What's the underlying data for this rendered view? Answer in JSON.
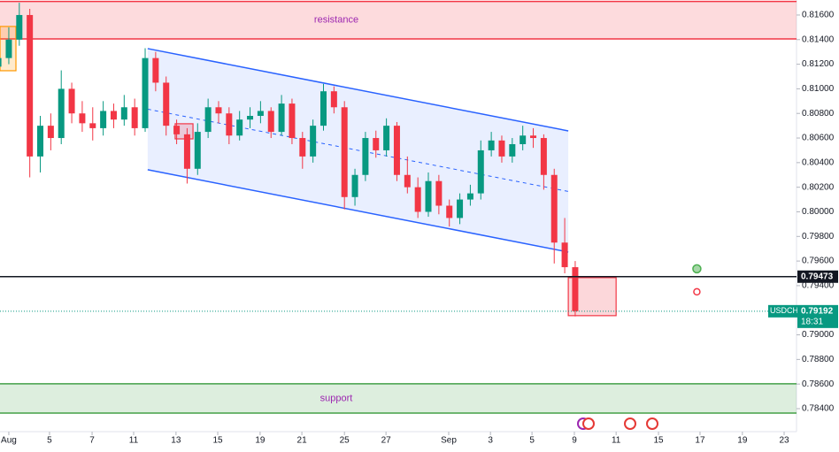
{
  "chart_data": {
    "type": "candlestick",
    "symbol": "USDCHF",
    "countdown": "18:31",
    "up_color": "#089981",
    "down_color": "#f23645",
    "x": [
      -0.5,
      0,
      0.5,
      1,
      1.5,
      2,
      2.5,
      3,
      3.5,
      4,
      4.5,
      5,
      5.5,
      6,
      6.5,
      7,
      7.5,
      8,
      8.5,
      9,
      9.5,
      10,
      10.5,
      11,
      11.5,
      12,
      12.5,
      13,
      13.5,
      14,
      14.5,
      15,
      15.5,
      16,
      16.5,
      17,
      17.5,
      18,
      18.5,
      19,
      19.5,
      20,
      20.5,
      21,
      21.5,
      22,
      22.5,
      23,
      23.5,
      24,
      24.5,
      25,
      25.5,
      26,
      26.5,
      27
    ],
    "ohlc": [
      [
        0.8118,
        0.8132,
        0.811,
        0.8125
      ],
      [
        0.8125,
        0.815,
        0.812,
        0.814
      ],
      [
        0.814,
        0.817,
        0.8135,
        0.816
      ],
      [
        0.816,
        0.8165,
        0.8028,
        0.8045
      ],
      [
        0.8045,
        0.8078,
        0.8032,
        0.807
      ],
      [
        0.807,
        0.808,
        0.805,
        0.806
      ],
      [
        0.806,
        0.8115,
        0.8055,
        0.81
      ],
      [
        0.81,
        0.8105,
        0.8072,
        0.808
      ],
      [
        0.808,
        0.809,
        0.8065,
        0.8072
      ],
      [
        0.8072,
        0.8085,
        0.8058,
        0.8068
      ],
      [
        0.8068,
        0.809,
        0.8062,
        0.8082
      ],
      [
        0.8082,
        0.8088,
        0.8068,
        0.8075
      ],
      [
        0.8075,
        0.8095,
        0.807,
        0.8085
      ],
      [
        0.8085,
        0.8092,
        0.8062,
        0.8068
      ],
      [
        0.8068,
        0.8133,
        0.8065,
        0.8125
      ],
      [
        0.8125,
        0.813,
        0.8098,
        0.8105
      ],
      [
        0.8105,
        0.811,
        0.8062,
        0.807
      ],
      [
        0.807,
        0.8075,
        0.8055,
        0.8063
      ],
      [
        0.8063,
        0.8068,
        0.8023,
        0.8035
      ],
      [
        0.8035,
        0.8072,
        0.803,
        0.8065
      ],
      [
        0.8065,
        0.8092,
        0.806,
        0.8085
      ],
      [
        0.8085,
        0.809,
        0.8072,
        0.808
      ],
      [
        0.808,
        0.8085,
        0.8055,
        0.8062
      ],
      [
        0.8062,
        0.8082,
        0.8058,
        0.8075
      ],
      [
        0.8075,
        0.8085,
        0.8068,
        0.8078
      ],
      [
        0.8078,
        0.809,
        0.8072,
        0.8082
      ],
      [
        0.8082,
        0.8085,
        0.806,
        0.8065
      ],
      [
        0.8065,
        0.8095,
        0.8062,
        0.8088
      ],
      [
        0.8088,
        0.8092,
        0.8055,
        0.806
      ],
      [
        0.806,
        0.8065,
        0.8035,
        0.8045
      ],
      [
        0.8045,
        0.8075,
        0.804,
        0.807
      ],
      [
        0.807,
        0.8104,
        0.8066,
        0.8098
      ],
      [
        0.8098,
        0.8102,
        0.808,
        0.8085
      ],
      [
        0.8085,
        0.809,
        0.8002,
        0.8012
      ],
      [
        0.8012,
        0.8035,
        0.8005,
        0.803
      ],
      [
        0.803,
        0.8065,
        0.8025,
        0.806
      ],
      [
        0.806,
        0.8066,
        0.8044,
        0.805
      ],
      [
        0.805,
        0.8076,
        0.8045,
        0.807
      ],
      [
        0.807,
        0.8073,
        0.8025,
        0.803
      ],
      [
        0.803,
        0.8045,
        0.8015,
        0.802
      ],
      [
        0.802,
        0.8028,
        0.7995,
        0.8
      ],
      [
        0.8,
        0.8032,
        0.7996,
        0.8025
      ],
      [
        0.8025,
        0.803,
        0.7998,
        0.8005
      ],
      [
        0.8005,
        0.801,
        0.7988,
        0.7995
      ],
      [
        0.7995,
        0.8015,
        0.799,
        0.801
      ],
      [
        0.801,
        0.8022,
        0.8005,
        0.8015
      ],
      [
        0.8015,
        0.8058,
        0.801,
        0.805
      ],
      [
        0.805,
        0.8065,
        0.8045,
        0.8058
      ],
      [
        0.8058,
        0.8062,
        0.804,
        0.8045
      ],
      [
        0.8045,
        0.806,
        0.804,
        0.8055
      ],
      [
        0.8055,
        0.807,
        0.805,
        0.8062
      ],
      [
        0.8062,
        0.8068,
        0.8052,
        0.806
      ],
      [
        0.806,
        0.8063,
        0.8018,
        0.803
      ],
      [
        0.803,
        0.8035,
        0.7958,
        0.7975
      ],
      [
        0.7975,
        0.7995,
        0.795,
        0.7955
      ],
      [
        0.7955,
        0.796,
        0.7915,
        0.79192
      ]
    ],
    "xlim": [
      -0.42,
      37.55
    ],
    "ylim": [
      0.78213,
      0.81722
    ],
    "xticks": [
      {
        "value": 0,
        "label": "Aug"
      },
      {
        "value": 1.94,
        "label": "5"
      },
      {
        "value": 3.97,
        "label": "7"
      },
      {
        "value": 5.95,
        "label": "11"
      },
      {
        "value": 7.97,
        "label": "13"
      },
      {
        "value": 9.96,
        "label": "15"
      },
      {
        "value": 11.98,
        "label": "19"
      },
      {
        "value": 13.97,
        "label": "21"
      },
      {
        "value": 16,
        "label": "25"
      },
      {
        "value": 17.98,
        "label": "27"
      },
      {
        "value": 20.97,
        "label": "Sep"
      },
      {
        "value": 22.96,
        "label": "3"
      },
      {
        "value": 24.94,
        "label": "5"
      },
      {
        "value": 26.96,
        "label": "9"
      },
      {
        "value": 28.95,
        "label": "11"
      },
      {
        "value": 30.97,
        "label": "15"
      },
      {
        "value": 32.95,
        "label": "17"
      },
      {
        "value": 34.97,
        "label": "19"
      },
      {
        "value": 36.96,
        "label": "23"
      }
    ],
    "yticks": [
      {
        "value": 0.816,
        "label": "0.81600"
      },
      {
        "value": 0.814,
        "label": "0.81400"
      },
      {
        "value": 0.812,
        "label": "0.81200"
      },
      {
        "value": 0.81,
        "label": "0.81000"
      },
      {
        "value": 0.808,
        "label": "0.80800"
      },
      {
        "value": 0.806,
        "label": "0.80600"
      },
      {
        "value": 0.804,
        "label": "0.80400"
      },
      {
        "value": 0.802,
        "label": "0.80200"
      },
      {
        "value": 0.8,
        "label": "0.80000"
      },
      {
        "value": 0.798,
        "label": "0.79800"
      },
      {
        "value": 0.796,
        "label": "0.79600"
      },
      {
        "value": 0.794,
        "label": "0.79400"
      },
      {
        "value": 0.79,
        "label": "0.79000"
      },
      {
        "value": 0.788,
        "label": "0.78800"
      },
      {
        "value": 0.786,
        "label": "0.78600"
      },
      {
        "value": 0.784,
        "label": "0.78400"
      }
    ],
    "resistance": {
      "label": "resistance",
      "range": [
        0.81406,
        0.8171
      ],
      "color": "#f23645"
    },
    "support": {
      "label": "support",
      "range": [
        0.78364,
        0.78602
      ],
      "color": "#43a047"
    },
    "hline": {
      "value": 0.79473,
      "color": "#131722"
    },
    "channel": {
      "x": [
        6.62,
        26.67
      ],
      "upper": [
        0.81327,
        0.80658
      ],
      "lower": [
        0.80342,
        0.79673
      ],
      "color": "#2962ff"
    },
    "boxes": [
      {
        "x": [
          26.67,
          28.95
        ],
        "y": [
          0.79156,
          0.79465
        ],
        "color": "#f23645"
      },
      {
        "x": [
          7.93,
          8.78
        ],
        "y": [
          0.80593,
          0.80716
        ],
        "color": "#f23645"
      },
      {
        "x": [
          -0.42,
          0.34
        ],
        "y": [
          0.81147,
          0.81507
        ],
        "color": "#ff9800"
      }
    ],
    "signals": [
      {
        "x": 32.8,
        "y": 0.79537,
        "color": "#4caf50"
      },
      {
        "x": 32.8,
        "y": 0.7935,
        "color": "#f23645"
      }
    ]
  }
}
